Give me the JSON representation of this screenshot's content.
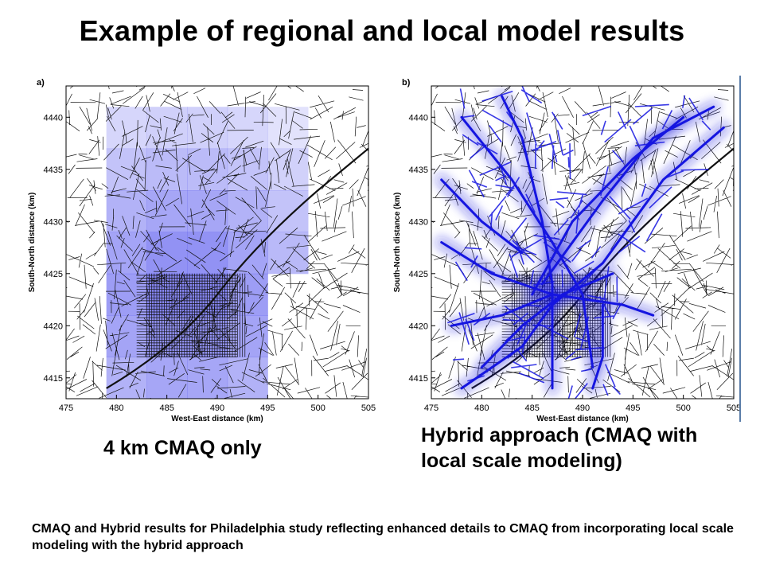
{
  "title": "Example of regional and local model results",
  "colors": {
    "cmaq": "#6b6bf0",
    "hybrid": "#1515e0",
    "roads": "#111111",
    "divider": "#5a7da8"
  },
  "chart_data": [
    {
      "type": "heatmap",
      "panel_label": "a)",
      "xlabel": "West-East distance (km)",
      "ylabel": "South-North distance (km)",
      "xlim": [
        475,
        505
      ],
      "ylim": [
        4413,
        4443
      ],
      "xticks": [
        475,
        480,
        485,
        490,
        495,
        500,
        505
      ],
      "yticks": [
        4415,
        4420,
        4425,
        4430,
        4435,
        4440
      ],
      "caption": "4 km CMAQ only"
    },
    {
      "type": "heatmap",
      "panel_label": "b)",
      "xlabel": "West-East distance (km)",
      "ylabel": "South-North distance (km)",
      "xlim": [
        475,
        505
      ],
      "ylim": [
        4413,
        4443
      ],
      "xticks": [
        475,
        480,
        485,
        490,
        495,
        500,
        505
      ],
      "yticks": [
        4415,
        4420,
        4425,
        4430,
        4435,
        4440
      ],
      "caption": "Hybrid approach (CMAQ with local scale modeling)"
    }
  ],
  "footnote": "CMAQ and Hybrid  results for Philadelphia study reflecting enhanced details to CMAQ from incorporating local scale modeling with the hybrid approach"
}
